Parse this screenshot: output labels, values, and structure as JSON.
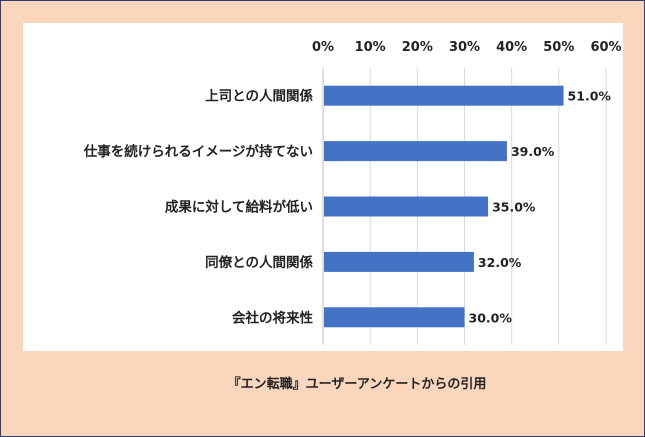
{
  "chart_data": {
    "type": "bar",
    "orientation": "horizontal",
    "categories": [
      "上司との人間関係",
      "仕事を続けられるイメージが持てない",
      "成果に対して給料が低い",
      "同僚との人間関係",
      "会社の将来性"
    ],
    "values": [
      51.0,
      39.0,
      35.0,
      32.0,
      30.0
    ],
    "value_labels": [
      "51.0%",
      "39.0%",
      "35.0%",
      "32.0%",
      "30.0%"
    ],
    "xticks": [
      "0%",
      "10%",
      "20%",
      "30%",
      "40%",
      "50%",
      "60%"
    ],
    "xlim": [
      0,
      60
    ],
    "axis_position": "top",
    "grid": true,
    "bar_color": "#4472c4",
    "title": "",
    "xlabel": "",
    "ylabel": ""
  },
  "caption": "『エン転職』ユーザーアンケートからの引用",
  "colors": {
    "background": "#fad6bd",
    "plot": "#ffffff",
    "border": "#2c3e73",
    "grid": "#d9d9d9"
  }
}
